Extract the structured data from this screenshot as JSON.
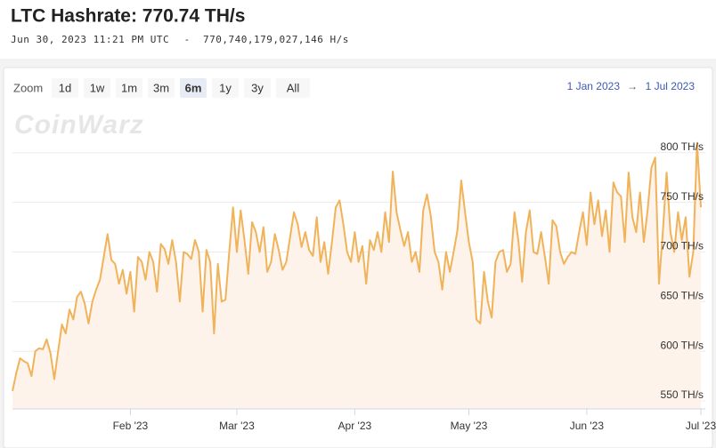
{
  "header": {
    "title": "LTC Hashrate: 770.74 TH/s",
    "timestamp": "Jun 30, 2023 11:21 PM UTC",
    "separator": "-",
    "raw_rate": "770,740,179,027,146 H/s"
  },
  "toolbar": {
    "zoom_label": "Zoom",
    "buttons": [
      "1d",
      "1w",
      "1m",
      "3m",
      "6m",
      "1y",
      "3y",
      "All"
    ],
    "selected": "6m",
    "range_from": "1 Jan 2023",
    "range_arrow": "→",
    "range_to": "1 Jul 2023"
  },
  "watermark": "CoinWarz",
  "chart_data": {
    "type": "area",
    "color": "#f0b35a",
    "fill": "#fdf3ea",
    "grid": true,
    "xlim": [
      0,
      181
    ],
    "ylim": [
      542,
      815
    ],
    "xticks": [
      {
        "value": 31,
        "label": "Feb '23"
      },
      {
        "value": 59,
        "label": "Mar '23"
      },
      {
        "value": 90,
        "label": "Apr '23"
      },
      {
        "value": 120,
        "label": "May '23"
      },
      {
        "value": 151,
        "label": "Jun '23"
      },
      {
        "value": 181,
        "label": "Jul '23"
      }
    ],
    "yticks": [
      {
        "value": 550,
        "label": "550 TH/s"
      },
      {
        "value": 600,
        "label": "600 TH/s"
      },
      {
        "value": 650,
        "label": "650 TH/s"
      },
      {
        "value": 700,
        "label": "700 TH/s"
      },
      {
        "value": 750,
        "label": "750 TH/s"
      },
      {
        "value": 800,
        "label": "800 TH/s"
      }
    ],
    "x": [
      0,
      1,
      2,
      3,
      4,
      5,
      6,
      7,
      8,
      9,
      10,
      11,
      12,
      13,
      14,
      15,
      16,
      17,
      18,
      19,
      20,
      21,
      22,
      23,
      24,
      25,
      26,
      27,
      28,
      29,
      30,
      31,
      32,
      33,
      34,
      35,
      36,
      37,
      38,
      39,
      40,
      41,
      42,
      43,
      44,
      45,
      46,
      47,
      48,
      49,
      50,
      51,
      52,
      53,
      54,
      55,
      56,
      57,
      58,
      59,
      60,
      61,
      62,
      63,
      64,
      65,
      66,
      67,
      68,
      69,
      70,
      71,
      72,
      73,
      74,
      75,
      76,
      77,
      78,
      79,
      80,
      81,
      82,
      83,
      84,
      85,
      86,
      87,
      88,
      89,
      90,
      91,
      92,
      93,
      94,
      95,
      96,
      97,
      98,
      99,
      100,
      101,
      102,
      103,
      104,
      105,
      106,
      107,
      108,
      109,
      110,
      111,
      112,
      113,
      114,
      115,
      116,
      117,
      118,
      119,
      120,
      121,
      122,
      123,
      124,
      125,
      126,
      127,
      128,
      129,
      130,
      131,
      132,
      133,
      134,
      135,
      136,
      137,
      138,
      139,
      140,
      141,
      142,
      143,
      144,
      145,
      146,
      147,
      148,
      149,
      150,
      151,
      152,
      153,
      154,
      155,
      156,
      157,
      158,
      159,
      160,
      161,
      162,
      163,
      164,
      165,
      166,
      167,
      168,
      169,
      170,
      171,
      172,
      173,
      174,
      175,
      176,
      177,
      178,
      179,
      180,
      181
    ],
    "values": [
      560,
      578,
      593,
      590,
      588,
      575,
      600,
      603,
      602,
      612,
      598,
      572,
      600,
      627,
      618,
      642,
      632,
      655,
      660,
      648,
      628,
      650,
      662,
      672,
      695,
      718,
      692,
      688,
      668,
      682,
      658,
      680,
      640,
      695,
      690,
      672,
      700,
      690,
      660,
      708,
      703,
      688,
      712,
      690,
      650,
      700,
      698,
      693,
      712,
      700,
      640,
      702,
      690,
      618,
      688,
      650,
      652,
      700,
      745,
      700,
      742,
      712,
      678,
      730,
      720,
      700,
      725,
      680,
      690,
      718,
      702,
      682,
      690,
      715,
      740,
      728,
      705,
      720,
      702,
      696,
      735,
      690,
      710,
      678,
      710,
      745,
      752,
      728,
      700,
      690,
      720,
      690,
      706,
      668,
      712,
      702,
      720,
      700,
      740,
      710,
      781,
      740,
      722,
      706,
      720,
      690,
      700,
      680,
      742,
      758,
      736,
      700,
      690,
      662,
      700,
      680,
      700,
      722,
      772,
      740,
      710,
      690,
      632,
      628,
      680,
      650,
      634,
      690,
      700,
      702,
      680,
      688,
      740,
      712,
      670,
      720,
      742,
      700,
      698,
      720,
      695,
      668,
      732,
      726,
      700,
      688,
      695,
      700,
      698,
      720,
      740,
      707,
      760,
      728,
      752,
      716,
      742,
      700,
      770,
      760,
      756,
      710,
      780,
      735,
      720,
      760,
      710,
      742,
      785,
      795,
      668,
      720,
      780,
      720,
      700,
      740,
      712,
      735,
      675,
      700,
      810,
      745
    ]
  }
}
